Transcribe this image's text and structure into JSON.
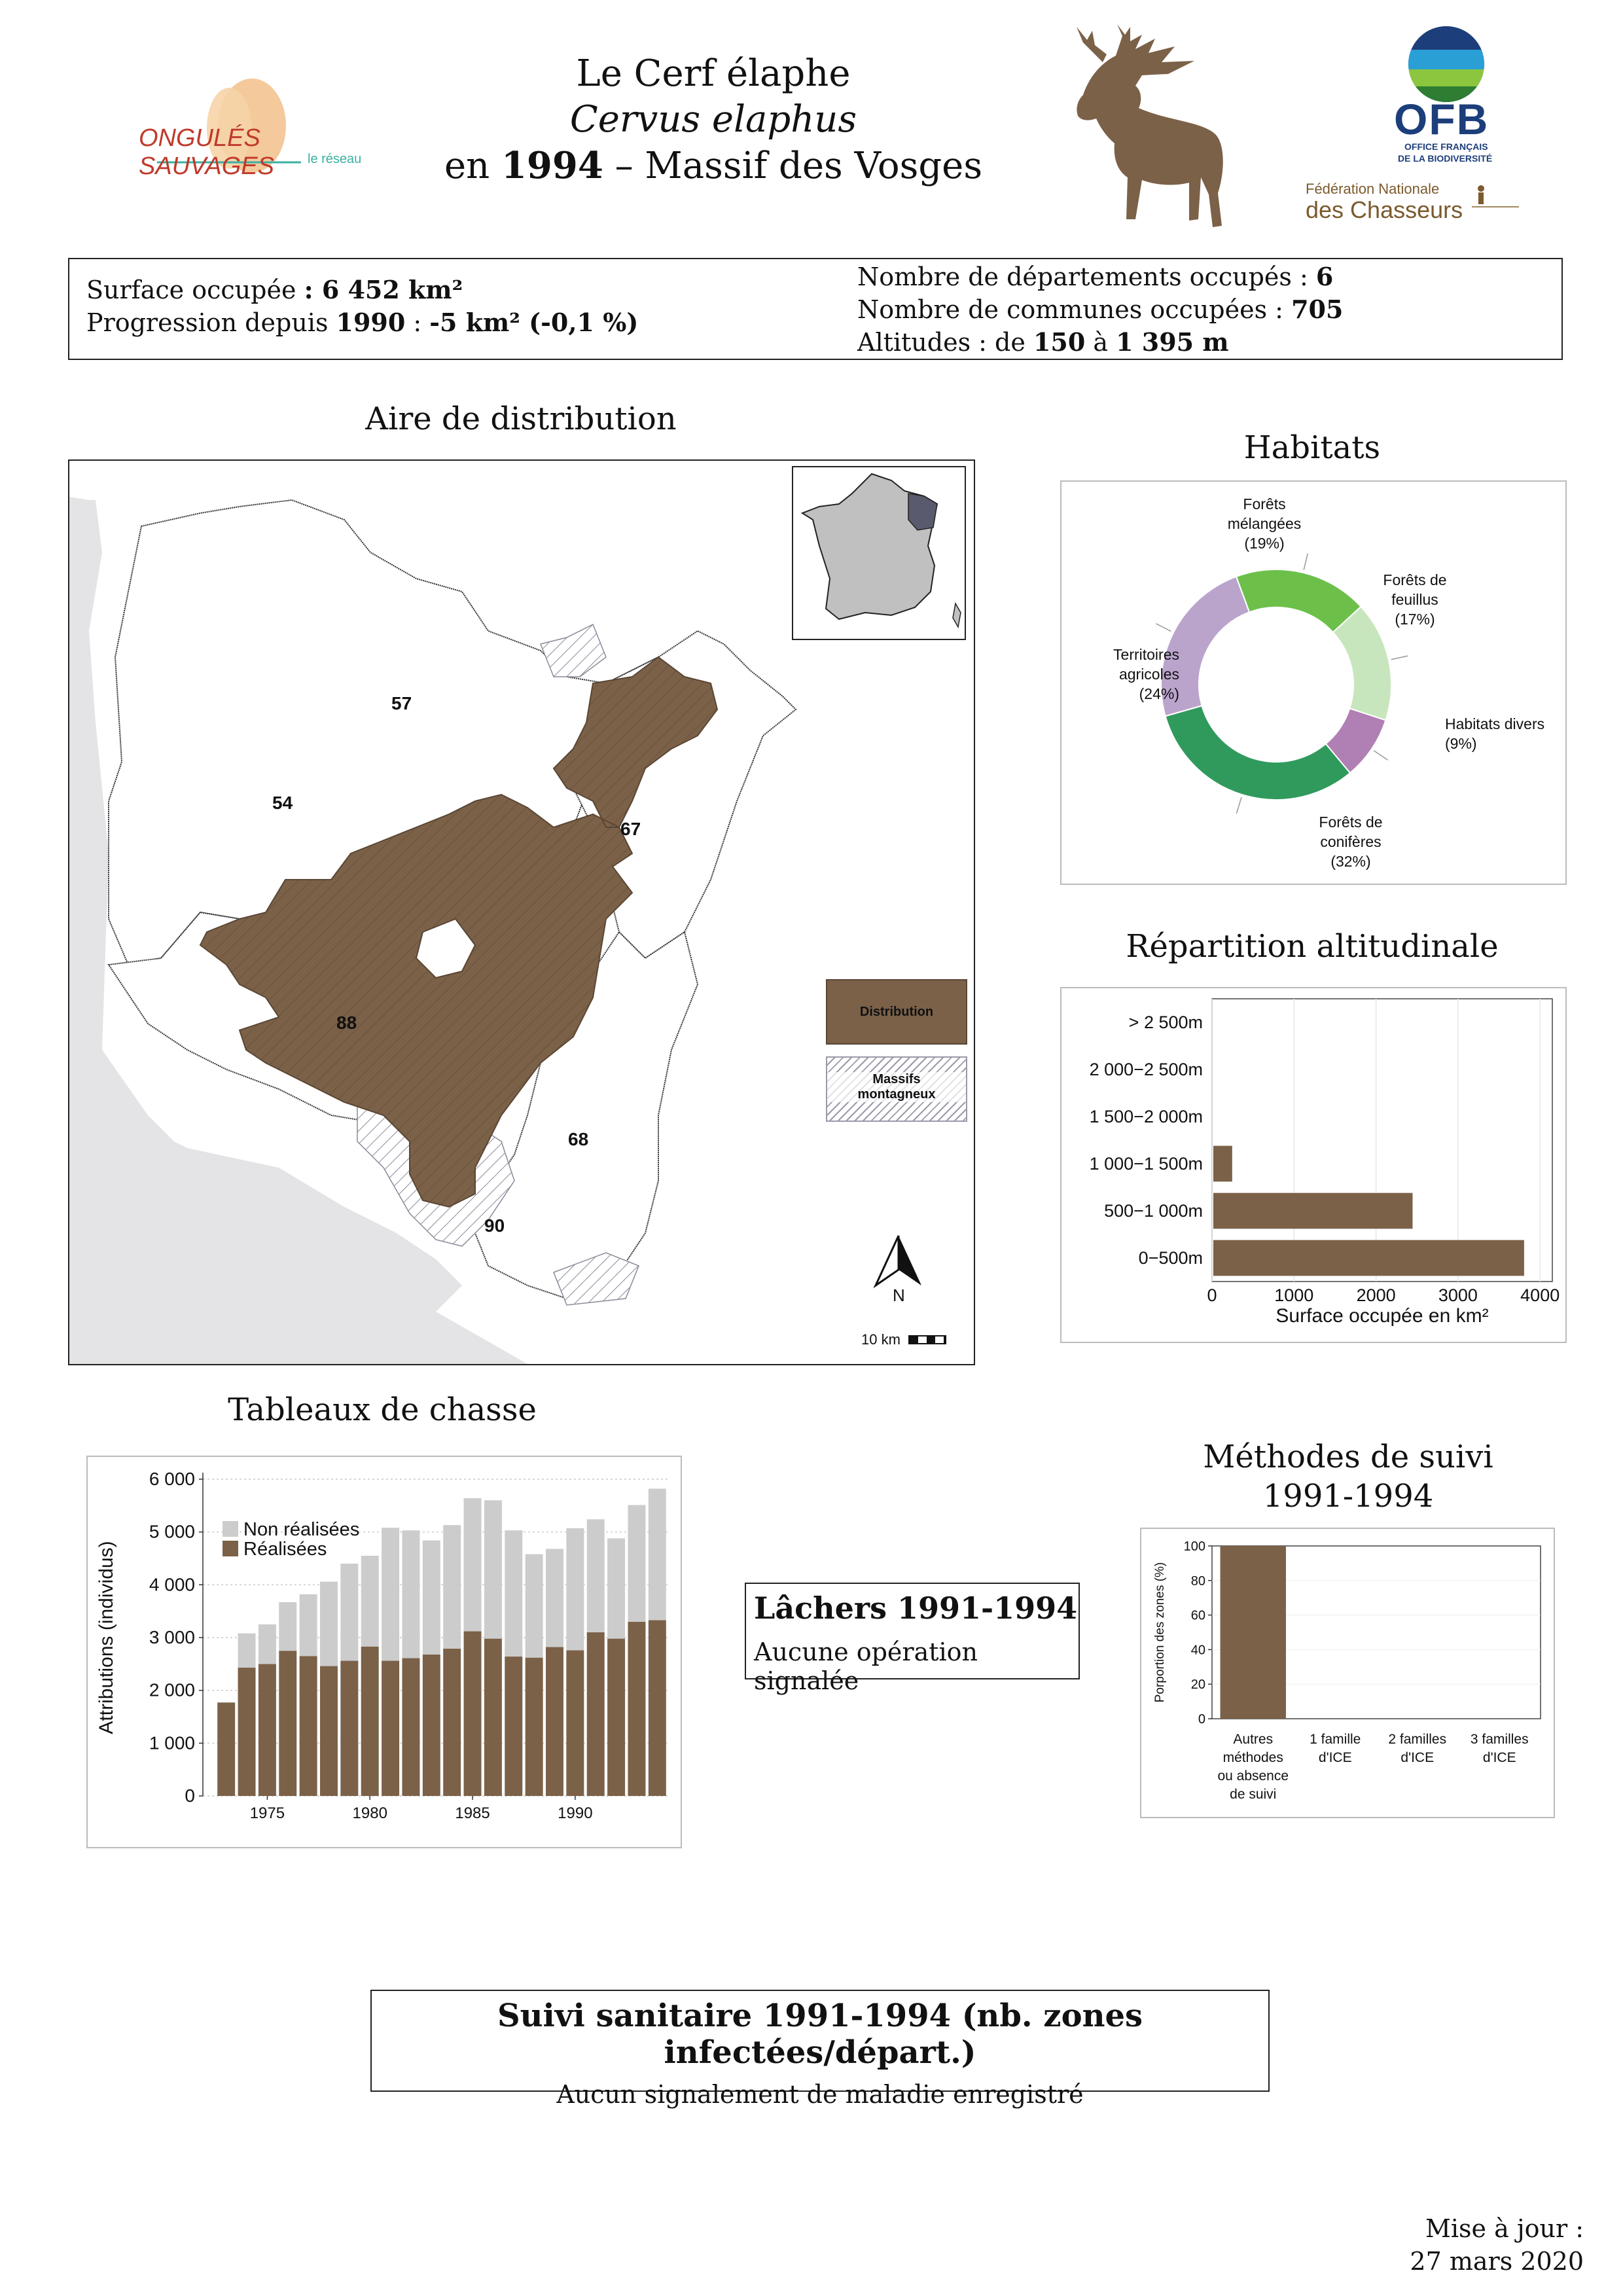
{
  "header": {
    "title_line1": "Le Cerf élaphe",
    "title_line2": "Cervus elaphus",
    "title_line3_prefix": "en ",
    "title_line3_year": "1994",
    "title_line3_suffix": " – Massif des Vosges",
    "logo_ongules_main": "ONGULÉS SAUVAGES",
    "logo_ongules_sub": "le réseau",
    "logo_ofb_main": "OFB",
    "logo_ofb_sub1": "OFFICE FRANÇAIS",
    "logo_ofb_sub2": "DE LA BIODIVERSITÉ",
    "logo_fnc_line1": "Fédération Nationale",
    "logo_fnc_line2": "des Chasseurs",
    "deer_icon": "deer-silhouette-icon"
  },
  "stats": {
    "surface_label": "Surface occupée",
    "surface_value": ": 6 452 km²",
    "progression_label": "Progression depuis",
    "progression_year": "1990",
    "progression_sep": " : ",
    "progression_value": "-5 km² (-0,1 %)",
    "departements_label": "Nombre de départements occupés :",
    "departements_value": "6",
    "communes_label": "Nombre de communes occupées :",
    "communes_value": "705",
    "altitudes_label": "Altitudes : de",
    "altitudes_min": "150",
    "altitudes_mid": "à",
    "altitudes_max": "1 395 m"
  },
  "map": {
    "title": "Aire de distribution",
    "departments": [
      "57",
      "54",
      "67",
      "88",
      "68",
      "90"
    ],
    "legend_distribution": "Distribution",
    "legend_massifs_line1": "Massifs",
    "legend_massifs_line2": "montagneux",
    "north_label": "N",
    "scale_label": "10 km",
    "colors": {
      "distribution": "#7b6148",
      "background_grey": "#e4e4e6",
      "inset_france": "#c0c0c0",
      "inset_highlight": "#5a5a6e"
    }
  },
  "habitats": {
    "title": "Habitats",
    "chart_data": {
      "type": "pie",
      "variant": "donut",
      "slices": [
        {
          "label_l1": "Forêts",
          "label_l2": "mélangées",
          "pct_label": "(19%)",
          "value": 19,
          "color": "#6cc04a"
        },
        {
          "label_l1": "Forêts de",
          "label_l2": "feuillus",
          "pct_label": "(17%)",
          "value": 17,
          "color": "#c8e6bd"
        },
        {
          "label_l1": "Habitats divers",
          "label_l2": "",
          "pct_label": "(9%)",
          "value": 9,
          "color": "#b07fb3"
        },
        {
          "label_l1": "Forêts de",
          "label_l2": "conifères",
          "pct_label": "(32%)",
          "value": 32,
          "color": "#2f9a5c"
        },
        {
          "label_l1": "Territoires",
          "label_l2": "agricoles",
          "pct_label": "(24%)",
          "value": 24,
          "color": "#bba4cc"
        }
      ]
    }
  },
  "altitude": {
    "title": "Répartition altitudinale",
    "chart_data": {
      "type": "bar",
      "orientation": "horizontal",
      "categories": [
        "> 2 500m",
        "2 000−2 500m",
        "1 500−2 000m",
        "1 000−1 500m",
        "500−1 000m",
        "0−500m"
      ],
      "values": [
        0,
        0,
        0,
        230,
        2430,
        3790
      ],
      "xlabel": "Surface occupée en km²",
      "xticks": [
        "0",
        "1000",
        "2000",
        "3000",
        "4000"
      ],
      "xlim": [
        0,
        4150
      ],
      "color": "#7b6148"
    }
  },
  "chasse": {
    "title": "Tableaux de chasse",
    "chart_data": {
      "type": "bar",
      "stacked": true,
      "x": [
        1973,
        1974,
        1975,
        1976,
        1977,
        1978,
        1979,
        1980,
        1981,
        1982,
        1983,
        1984,
        1985,
        1986,
        1987,
        1988,
        1989,
        1990,
        1991,
        1992,
        1993,
        1994
      ],
      "series": [
        {
          "name": "Réalisées",
          "color": "#7b6148",
          "values": [
            1770,
            2430,
            2500,
            2750,
            2650,
            2460,
            2560,
            2830,
            2560,
            2610,
            2680,
            2790,
            3120,
            2980,
            2640,
            2620,
            2820,
            2760,
            3100,
            2980,
            3300,
            3330
          ]
        },
        {
          "name": "Non réalisées",
          "color": "#cccccc",
          "values": [
            0,
            650,
            750,
            920,
            1170,
            1600,
            1840,
            1720,
            2520,
            2420,
            2160,
            2340,
            2520,
            2620,
            2390,
            1960,
            1860,
            2310,
            2140,
            1900,
            2210,
            2490
          ]
        }
      ],
      "ylabel": "Attributions (individus)",
      "yticks": [
        "0",
        "1 000",
        "2 000",
        "3 000",
        "4 000",
        "5 000",
        "6 000"
      ],
      "xticks": [
        "1975",
        "1980",
        "1985",
        "1990"
      ],
      "ylim": [
        0,
        6000
      ],
      "legend": [
        "Non réalisées",
        "Réalisées"
      ]
    }
  },
  "lachers": {
    "title": "Lâchers 1991-1994",
    "text": "Aucune opération signalée"
  },
  "methodes": {
    "title_line1": "Méthodes de suivi",
    "title_line2": "1991-1994",
    "chart_data": {
      "type": "bar",
      "categories": [
        [
          "Autres",
          "méthodes",
          "ou absence",
          "de suivi"
        ],
        [
          "1 famille",
          "d'ICE"
        ],
        [
          "2 familles",
          "d'ICE"
        ],
        [
          "3 familles",
          "d'ICE"
        ]
      ],
      "values": [
        100,
        0,
        0,
        0
      ],
      "ylabel": "Porportion des zones (%)",
      "yticks": [
        "0",
        "20",
        "40",
        "60",
        "80",
        "100"
      ],
      "ylim": [
        0,
        100
      ],
      "color": "#7b6148"
    }
  },
  "sanitaire": {
    "title": "Suivi sanitaire 1991-1994 (nb. zones infectées/départ.)",
    "text": "Aucun signalement de maladie enregistré"
  },
  "footer": {
    "update_line1": "Mise à jour :",
    "update_line2": "27 mars 2020"
  }
}
